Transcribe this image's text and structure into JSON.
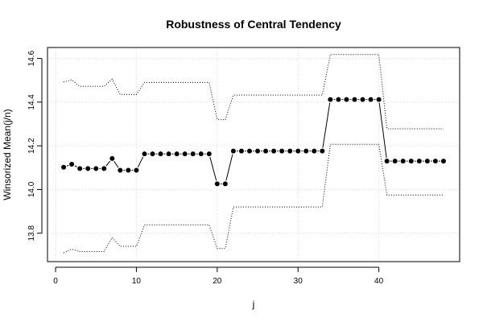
{
  "chart_data": {
    "type": "line",
    "title": "Robustness of Central Tendency",
    "xlabel": "j",
    "ylabel": "Winsorized Mean(j/n)",
    "xlim": [
      -1,
      50
    ],
    "ylim": [
      13.67,
      14.65
    ],
    "xticks": [
      0,
      10,
      20,
      30,
      40
    ],
    "yticks": [
      13.8,
      14.0,
      14.2,
      14.4,
      14.6
    ],
    "xtick_labels": [
      "0",
      "10",
      "20",
      "30",
      "40"
    ],
    "ytick_labels": [
      "13.8",
      "14.0",
      "14.2",
      "14.4",
      "14.6"
    ],
    "grid": true,
    "legend": "none",
    "x": [
      1,
      2,
      3,
      4,
      5,
      6,
      7,
      8,
      9,
      10,
      11,
      12,
      13,
      14,
      15,
      16,
      17,
      18,
      19,
      20,
      21,
      22,
      23,
      24,
      25,
      26,
      27,
      28,
      29,
      30,
      31,
      32,
      33,
      34,
      35,
      36,
      37,
      38,
      39,
      40,
      41,
      42,
      43,
      44,
      45,
      46,
      47,
      48
    ],
    "series": [
      {
        "style": "points-line",
        "values": [
          14.102,
          14.116,
          14.096,
          14.096,
          14.096,
          14.096,
          14.142,
          14.088,
          14.088,
          14.088,
          14.163,
          14.163,
          14.163,
          14.163,
          14.163,
          14.163,
          14.163,
          14.163,
          14.163,
          14.026,
          14.026,
          14.176,
          14.176,
          14.176,
          14.176,
          14.176,
          14.176,
          14.176,
          14.176,
          14.176,
          14.176,
          14.176,
          14.176,
          14.412,
          14.412,
          14.412,
          14.412,
          14.412,
          14.412,
          14.412,
          14.13,
          14.13,
          14.13,
          14.13,
          14.13,
          14.13,
          14.13,
          14.13
        ]
      },
      {
        "style": "dotted",
        "values": [
          14.492,
          14.502,
          14.472,
          14.472,
          14.472,
          14.472,
          14.505,
          14.435,
          14.435,
          14.435,
          14.49,
          14.49,
          14.49,
          14.49,
          14.49,
          14.49,
          14.49,
          14.49,
          14.49,
          14.32,
          14.32,
          14.432,
          14.432,
          14.432,
          14.432,
          14.432,
          14.432,
          14.432,
          14.432,
          14.432,
          14.432,
          14.432,
          14.432,
          14.618,
          14.618,
          14.618,
          14.618,
          14.618,
          14.618,
          14.618,
          14.278,
          14.278,
          14.278,
          14.278,
          14.278,
          14.278,
          14.278,
          14.278
        ]
      },
      {
        "style": "dotted",
        "values": [
          13.71,
          13.727,
          13.716,
          13.716,
          13.716,
          13.716,
          13.78,
          13.74,
          13.74,
          13.74,
          13.838,
          13.838,
          13.838,
          13.838,
          13.838,
          13.838,
          13.838,
          13.838,
          13.838,
          13.73,
          13.73,
          13.92,
          13.92,
          13.92,
          13.92,
          13.92,
          13.92,
          13.92,
          13.92,
          13.92,
          13.92,
          13.92,
          13.92,
          14.207,
          14.207,
          14.207,
          14.207,
          14.207,
          14.207,
          14.207,
          13.975,
          13.975,
          13.975,
          13.975,
          13.975,
          13.975,
          13.975,
          13.975
        ]
      }
    ]
  }
}
